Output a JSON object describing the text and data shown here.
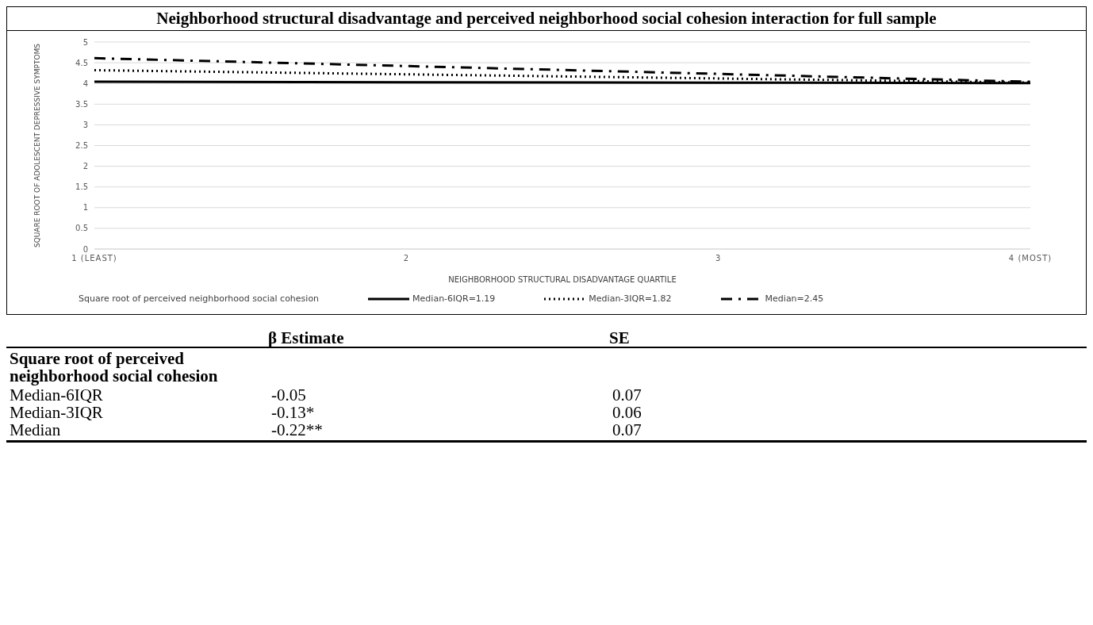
{
  "chart_data": {
    "type": "line",
    "title": "Neighborhood structural disadvantage and perceived neighborhood social cohesion interaction for full sample",
    "xlabel": "NEIGHBORHOOD STRUCTURAL DISADVANTAGE QUARTILE",
    "ylabel": "SQUARE ROOT OF ADOLESCENT DEPRESSIVE SYMPTOMS",
    "categories": [
      "1 (LEAST)",
      "2",
      "3",
      "4 (MOST)"
    ],
    "series": [
      {
        "name": "Median-6IQR=1.19",
        "color": "#000000",
        "line_style": "solid",
        "values": [
          4.04,
          4.03,
          4.02,
          4.01
        ]
      },
      {
        "name": "Median-3IQR=1.82",
        "color": "#000000",
        "line_style": "dotted",
        "values": [
          4.32,
          4.22,
          4.12,
          4.02
        ]
      },
      {
        "name": "Median=2.45",
        "color": "#000000",
        "line_style": "dashed",
        "values": [
          4.61,
          4.42,
          4.23,
          4.04
        ]
      }
    ],
    "ylim": [
      0,
      5
    ],
    "yticks": [
      0,
      0.5,
      1,
      1.5,
      2,
      2.5,
      3,
      3.5,
      4,
      4.5,
      5
    ],
    "grid": "y",
    "legend": "bottom",
    "marker": "none",
    "legend_title": "Square root of perceived neighborhood social cohesion",
    "annotations": [
      "β Estimate",
      "SE",
      "Square root of perceived neighborhood social cohesion",
      "Median-6IQR",
      "-0.05",
      "0.07",
      "Median-3IQR",
      "-0.13*",
      "0.06",
      "Median",
      "-0.22**",
      "0.07"
    ]
  }
}
